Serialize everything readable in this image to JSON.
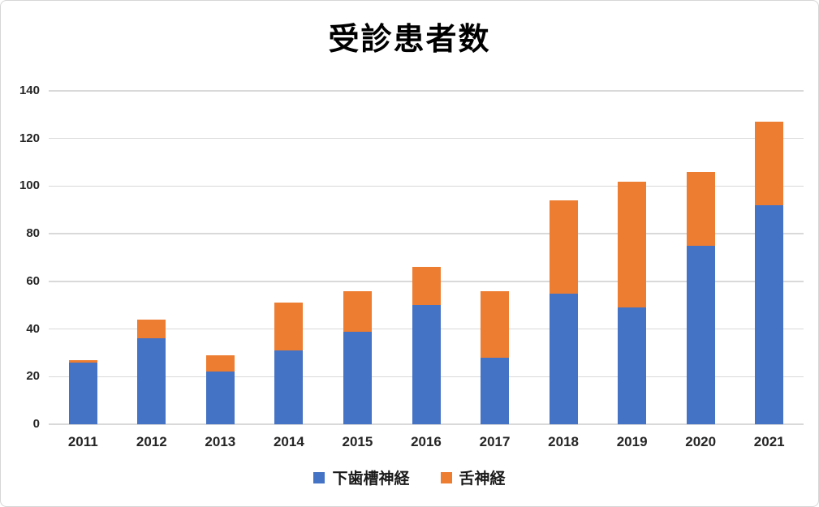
{
  "chart_data": {
    "type": "bar",
    "stacked": true,
    "title": "受診患者数",
    "categories": [
      "2011",
      "2012",
      "2013",
      "2014",
      "2015",
      "2016",
      "2017",
      "2018",
      "2019",
      "2020",
      "2021"
    ],
    "series": [
      {
        "name": "下歯槽神経",
        "color": "#4472C4",
        "values": [
          26,
          36,
          22,
          31,
          39,
          50,
          28,
          55,
          49,
          75,
          92
        ]
      },
      {
        "name": "舌神経",
        "color": "#ED7D31",
        "values": [
          1,
          8,
          7,
          20,
          17,
          16,
          28,
          39,
          53,
          31,
          35
        ]
      }
    ],
    "totals": [
      27,
      44,
      29,
      51,
      56,
      66,
      56,
      94,
      102,
      106,
      127
    ],
    "xlabel": "",
    "ylabel": "",
    "ylim": [
      0,
      140
    ],
    "yticks": [
      0,
      20,
      40,
      60,
      80,
      100,
      120,
      140
    ],
    "grid": true,
    "gridline_color": "#D9D9D9",
    "axis_text_color": "#262626",
    "legend_position": "bottom"
  }
}
